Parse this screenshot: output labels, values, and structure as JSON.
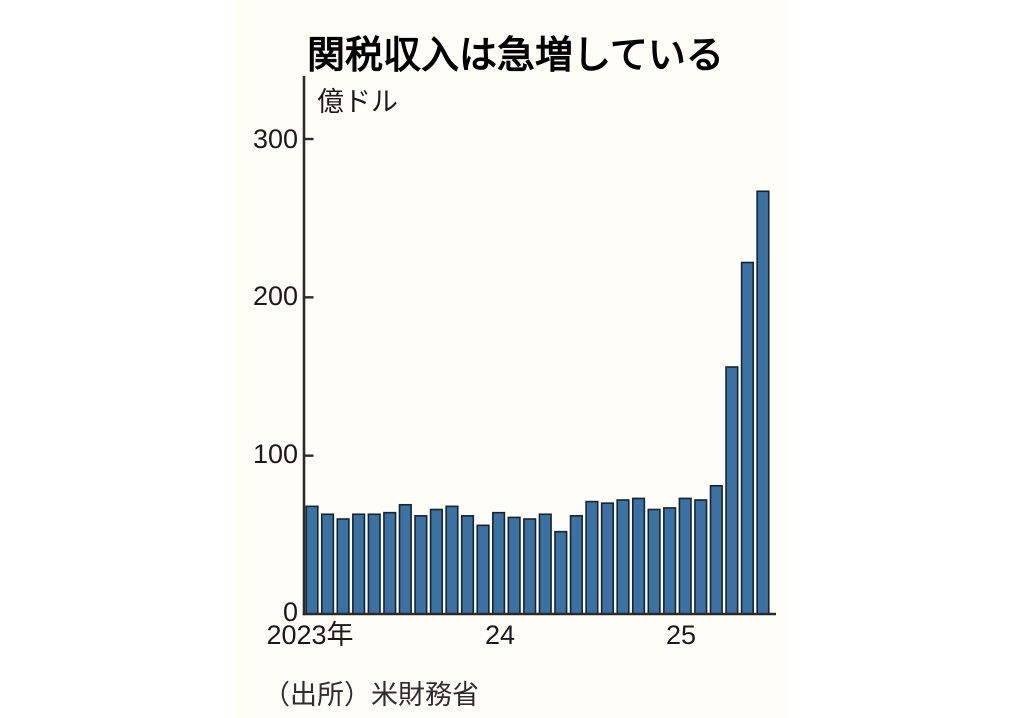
{
  "chart_data": {
    "type": "bar",
    "title": "関税収入は急増している",
    "unit_label": "億ドル",
    "source": "（出所）米財務省",
    "categories": [
      "2023-01",
      "2023-02",
      "2023-03",
      "2023-04",
      "2023-05",
      "2023-06",
      "2023-07",
      "2023-08",
      "2023-09",
      "2023-10",
      "2023-11",
      "2023-12",
      "2024-01",
      "2024-02",
      "2024-03",
      "2024-04",
      "2024-05",
      "2024-06",
      "2024-07",
      "2024-08",
      "2024-09",
      "2024-10",
      "2024-11",
      "2024-12",
      "2025-01",
      "2025-02",
      "2025-03",
      "2025-04",
      "2025-05",
      "2025-06"
    ],
    "values": [
      68,
      63,
      60,
      63,
      63,
      64,
      69,
      62,
      66,
      68,
      62,
      56,
      64,
      61,
      60,
      63,
      52,
      62,
      71,
      70,
      72,
      73,
      66,
      67,
      73,
      72,
      81,
      156,
      222,
      267
    ],
    "ylabel": "億ドル",
    "ylim": [
      0,
      320
    ],
    "yticks": [
      "0",
      "100",
      "200",
      "300"
    ],
    "xtick_labels": [
      "2023年",
      "24",
      "25"
    ],
    "grid": "off",
    "legend": "none",
    "bar_color": "#3a72a4",
    "bar_border_color": "#18242f",
    "axis_color": "#2b2b2b"
  }
}
